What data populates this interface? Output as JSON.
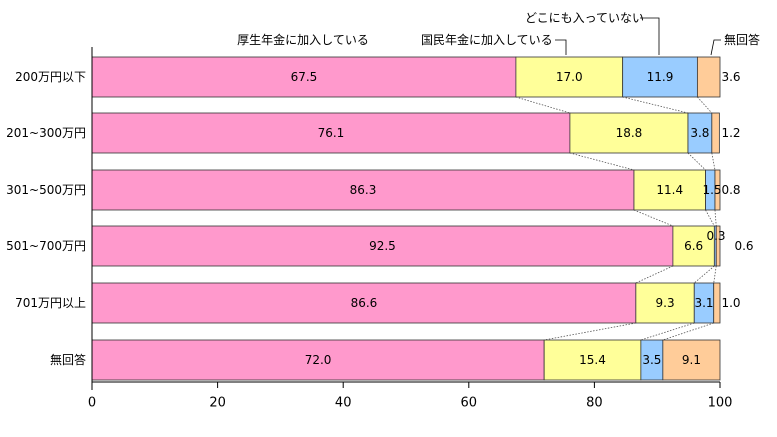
{
  "chart_data": {
    "type": "bar",
    "orientation": "horizontal",
    "stacked": true,
    "categories": [
      "200万円以下",
      "201~300万円",
      "301~500万円",
      "501~700万円",
      "701万円以上",
      "無回答"
    ],
    "series": [
      {
        "name": "厚生年金に加入している",
        "color": "#ff99cc",
        "values": [
          67.5,
          76.1,
          86.3,
          92.5,
          86.6,
          72.0
        ],
        "labels": [
          "67.5",
          "76.1",
          "86.3",
          "92.5",
          "86.6",
          "72.0"
        ]
      },
      {
        "name": "国民年金に加入している",
        "color": "#ffff99",
        "values": [
          17.0,
          18.8,
          11.4,
          6.6,
          9.3,
          15.4
        ],
        "labels": [
          "17.0",
          "18.8",
          "11.4",
          "6.6",
          "9.3",
          "15.4"
        ]
      },
      {
        "name": "どこにも入っていない",
        "color": "#99ccff",
        "values": [
          11.9,
          3.8,
          1.5,
          0.3,
          3.1,
          3.5
        ],
        "labels": [
          "11.9",
          "3.8",
          "1.5",
          "0.3",
          "3.1",
          "3.5"
        ]
      },
      {
        "name": "無回答",
        "color": "#ffcc99",
        "values": [
          3.6,
          1.2,
          0.8,
          0.6,
          1.0,
          9.1
        ],
        "labels": [
          "3.6",
          "1.2",
          "0.8",
          "0.6",
          "1.0",
          "9.1"
        ]
      }
    ],
    "xlim": [
      0,
      100
    ],
    "x_ticks": [
      "0",
      "20",
      "40",
      "60",
      "80",
      "100"
    ],
    "connector_lines": true,
    "legend": "callouts-top"
  }
}
